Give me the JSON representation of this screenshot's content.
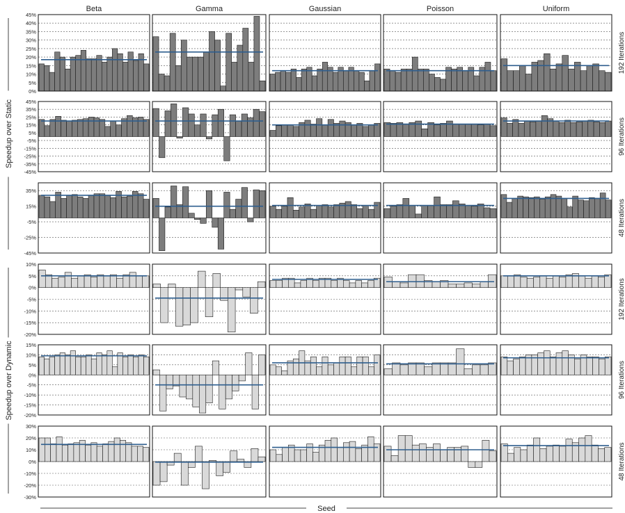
{
  "figure": {
    "col_titles": [
      "Beta",
      "Gamma",
      "Gaussian",
      "Poisson",
      "Uniform"
    ],
    "row_labels": [
      "192 Iterations",
      "96 Iterations",
      "48 Iterations",
      "192 Iterations",
      "96 Iterations",
      "48 Iterations"
    ],
    "group_labels": [
      "Speedup over Static",
      "Speedup over Dynamic"
    ],
    "x_axis_label": "Seed",
    "colors": {
      "static_bar": "#7d7d7d",
      "dynamic_bar": "#d9d9d9",
      "mean_line": "#2e5e8e"
    }
  },
  "chart_data": [
    {
      "type": "bar",
      "row": 0,
      "col": 0,
      "ylim": [
        0,
        45
      ],
      "yticks": [
        0,
        5,
        10,
        15,
        20,
        25,
        30,
        35,
        40,
        45
      ],
      "ytick_labels": [
        "0%",
        "5%",
        "10%",
        "15%",
        "20%",
        "25%",
        "30%",
        "35%",
        "40%",
        "45%"
      ],
      "mean": 18.5,
      "values": [
        16,
        15,
        11,
        23,
        20,
        13,
        20,
        21,
        24,
        19,
        19,
        21,
        17,
        20,
        25,
        22,
        17,
        23,
        18,
        22,
        16
      ]
    },
    {
      "type": "bar",
      "row": 0,
      "col": 1,
      "ylim": [
        0,
        45
      ],
      "mean": 23,
      "values": [
        32,
        10,
        9,
        34,
        15,
        30,
        20,
        20,
        20,
        23,
        35,
        30,
        3,
        34,
        17,
        27,
        37,
        17,
        44,
        6
      ]
    },
    {
      "type": "bar",
      "row": 0,
      "col": 2,
      "ylim": [
        0,
        45
      ],
      "mean": 12,
      "values": [
        10,
        11,
        12,
        11,
        13,
        8,
        13,
        14,
        9,
        13,
        17,
        14,
        11,
        14,
        12,
        14,
        12,
        11,
        6,
        12,
        16
      ]
    },
    {
      "type": "bar",
      "row": 0,
      "col": 3,
      "ylim": [
        0,
        45
      ],
      "mean": 12,
      "values": [
        13,
        12,
        11,
        13,
        13,
        20,
        13,
        13,
        10,
        8,
        7,
        14,
        13,
        14,
        12,
        14,
        9,
        14,
        17,
        12
      ]
    },
    {
      "type": "bar",
      "row": 0,
      "col": 4,
      "ylim": [
        0,
        45
      ],
      "mean": 15,
      "values": [
        19,
        12,
        12,
        15,
        10,
        17,
        18,
        22,
        13,
        16,
        21,
        13,
        17,
        12,
        15,
        16,
        12,
        11
      ]
    },
    {
      "type": "bar",
      "row": 1,
      "col": 0,
      "ylim": [
        -45,
        45
      ],
      "yticks": [
        -45,
        -35,
        -25,
        -15,
        -5,
        5,
        15,
        25,
        35,
        45
      ],
      "ytick_labels": [
        "-45%",
        "-35%",
        "-25%",
        "-15%",
        "-5%",
        "5%",
        "15%",
        "25%",
        "35%",
        "45%"
      ],
      "mean": 20,
      "values": [
        22,
        14,
        22,
        26,
        21,
        20,
        21,
        22,
        23,
        25,
        24,
        22,
        13,
        20,
        15,
        23,
        27,
        24,
        25,
        22
      ]
    },
    {
      "type": "bar",
      "row": 1,
      "col": 1,
      "ylim": [
        -45,
        45
      ],
      "mean": 20,
      "values": [
        36,
        -27,
        33,
        42,
        -2,
        37,
        29,
        15,
        29,
        -3,
        28,
        35,
        -31,
        28,
        20,
        29,
        24,
        35,
        32
      ]
    },
    {
      "type": "bar",
      "row": 1,
      "col": 2,
      "ylim": [
        -45,
        45
      ],
      "mean": 15,
      "values": [
        8,
        14,
        15,
        15,
        13,
        18,
        21,
        16,
        23,
        15,
        22,
        17,
        20,
        18,
        15,
        17,
        13,
        15,
        17
      ]
    },
    {
      "type": "bar",
      "row": 1,
      "col": 3,
      "ylim": [
        -45,
        45
      ],
      "mean": 16,
      "values": [
        18,
        17,
        18,
        16,
        18,
        20,
        10,
        18,
        15,
        17,
        20,
        16,
        16,
        16,
        16,
        15,
        16,
        14
      ]
    },
    {
      "type": "bar",
      "row": 1,
      "col": 4,
      "ylim": [
        -45,
        45
      ],
      "mean": 20,
      "values": [
        24,
        17,
        22,
        17,
        20,
        19,
        20,
        27,
        23,
        20,
        18,
        21,
        18,
        19,
        20,
        21,
        19,
        18,
        20
      ]
    },
    {
      "type": "bar",
      "row": 2,
      "col": 0,
      "ylim": [
        -45,
        45
      ],
      "yticks": [
        -45,
        -25,
        -5,
        15,
        35
      ],
      "ytick_labels": [
        "-45%",
        "-25%",
        "-5%",
        "15%",
        "35%"
      ],
      "mean": 29,
      "values": [
        29,
        27,
        21,
        33,
        25,
        29,
        30,
        27,
        25,
        29,
        31,
        31,
        29,
        26,
        34,
        27,
        28,
        34,
        31,
        24
      ]
    },
    {
      "type": "bar",
      "row": 2,
      "col": 1,
      "ylim": [
        -45,
        45
      ],
      "mean": 15,
      "values": [
        25,
        -42,
        14,
        41,
        17,
        40,
        6,
        -2,
        -7,
        35,
        -12,
        -40,
        33,
        11,
        24,
        39,
        -5,
        36,
        35
      ]
    },
    {
      "type": "bar",
      "row": 2,
      "col": 2,
      "ylim": [
        -45,
        45
      ],
      "mean": 16,
      "values": [
        15,
        11,
        15,
        26,
        10,
        14,
        18,
        11,
        16,
        17,
        14,
        17,
        19,
        21,
        17,
        12,
        16,
        11,
        20
      ]
    },
    {
      "type": "bar",
      "row": 2,
      "col": 3,
      "ylim": [
        -45,
        45
      ],
      "mean": 16,
      "values": [
        12,
        15,
        17,
        25,
        16,
        5,
        16,
        16,
        27,
        17,
        17,
        22,
        18,
        16,
        15,
        18,
        13,
        12
      ]
    },
    {
      "type": "bar",
      "row": 2,
      "col": 4,
      "ylim": [
        -45,
        45
      ],
      "mean": 25,
      "values": [
        30,
        20,
        25,
        28,
        27,
        26,
        27,
        24,
        27,
        30,
        28,
        25,
        14,
        28,
        23,
        22,
        26,
        25,
        32,
        23
      ]
    },
    {
      "type": "bar",
      "row": 3,
      "col": 0,
      "ylim": [
        -20,
        10
      ],
      "yticks": [
        -20,
        -15,
        -10,
        -5,
        0,
        5,
        10
      ],
      "ytick_labels": [
        "-20%",
        "-15%",
        "-10%",
        "-5%",
        "0%",
        "5%",
        "10%"
      ],
      "mean": 5,
      "values": [
        7.5,
        5.5,
        4,
        4.5,
        6.5,
        4,
        5,
        5.5,
        4.5,
        5.5,
        5,
        5.5,
        4,
        5.5,
        6.5,
        5,
        5
      ]
    },
    {
      "type": "bar",
      "row": 3,
      "col": 1,
      "ylim": [
        -20,
        10
      ],
      "mean": -4.5,
      "values": [
        1.5,
        -15,
        1.5,
        -16.5,
        -16,
        -15,
        7,
        -12.5,
        6,
        -5.5,
        -19,
        -1,
        -4,
        -11,
        2.5
      ]
    },
    {
      "type": "bar",
      "row": 3,
      "col": 2,
      "ylim": [
        -20,
        10
      ],
      "mean": 3.5,
      "values": [
        3,
        3,
        4,
        4,
        2,
        3,
        4,
        3,
        4,
        4,
        3,
        4,
        3,
        2,
        3,
        2,
        3,
        4
      ]
    },
    {
      "type": "bar",
      "row": 3,
      "col": 3,
      "ylim": [
        -20,
        10
      ],
      "mean": 2.5,
      "values": [
        4.5,
        2.5,
        2,
        5.5,
        5.5,
        3,
        2.5,
        3,
        1.5,
        1.5,
        2,
        1.5,
        2.5,
        5.5
      ]
    },
    {
      "type": "bar",
      "row": 3,
      "col": 4,
      "ylim": [
        -20,
        10
      ],
      "mean": 5,
      "values": [
        5,
        5,
        5.5,
        4.5,
        4,
        4.5,
        5,
        4,
        5,
        4.5,
        5.5,
        6,
        5,
        4,
        5,
        4.5,
        5.5
      ]
    },
    {
      "type": "bar",
      "row": 4,
      "col": 0,
      "ylim": [
        -20,
        15
      ],
      "yticks": [
        -20,
        -15,
        -10,
        -5,
        0,
        5,
        10,
        15
      ],
      "ytick_labels": [
        "-20%",
        "-15%",
        "-10%",
        "-5%",
        "0%",
        "5%",
        "10%",
        "15%"
      ],
      "mean": 9.5,
      "values": [
        9,
        8,
        9,
        10,
        11,
        10,
        12,
        9,
        9,
        10,
        8,
        11,
        10,
        12,
        4,
        11,
        9,
        10,
        9,
        10,
        9
      ]
    },
    {
      "type": "bar",
      "row": 4,
      "col": 1,
      "ylim": [
        -20,
        15
      ],
      "mean": -5,
      "values": [
        2.5,
        -18,
        -7,
        -5.5,
        -11,
        -12,
        -16,
        -19,
        -14,
        7,
        -17,
        -12,
        -8,
        -3,
        11,
        -17,
        10
      ]
    },
    {
      "type": "bar",
      "row": 4,
      "col": 2,
      "ylim": [
        -20,
        15
      ],
      "mean": 6,
      "values": [
        5,
        4,
        2,
        7,
        8,
        12,
        7,
        9,
        4,
        9,
        5,
        6,
        9,
        9,
        4,
        9,
        9,
        4,
        10
      ]
    },
    {
      "type": "bar",
      "row": 4,
      "col": 3,
      "ylim": [
        -20,
        15
      ],
      "mean": 5.5,
      "values": [
        3,
        6,
        5,
        6,
        6,
        4,
        6,
        6,
        6,
        13,
        3,
        5,
        5,
        6
      ]
    },
    {
      "type": "bar",
      "row": 4,
      "col": 4,
      "ylim": [
        -20,
        15
      ],
      "mean": 8.5,
      "values": [
        9,
        7,
        8,
        9,
        10,
        10,
        11,
        12,
        9,
        11,
        12,
        10,
        8,
        10,
        9,
        9,
        8,
        9
      ]
    },
    {
      "type": "bar",
      "row": 5,
      "col": 0,
      "ylim": [
        -30,
        30
      ],
      "yticks": [
        -30,
        -20,
        -10,
        0,
        10,
        20,
        30
      ],
      "ytick_labels": [
        "-30%",
        "-20%",
        "-10%",
        "0%",
        "10%",
        "20%",
        "30%"
      ],
      "mean": 14.5,
      "values": [
        20,
        20,
        15,
        21,
        14,
        15,
        16,
        18,
        14,
        16,
        13,
        15,
        17,
        20,
        18,
        16,
        13,
        13,
        12
      ]
    },
    {
      "type": "bar",
      "row": 5,
      "col": 1,
      "ylim": [
        -30,
        30
      ],
      "mean": -0.5,
      "values": [
        -20,
        -17,
        -3,
        7,
        -20,
        -5,
        13,
        -23,
        1,
        -12,
        -9,
        9,
        2,
        -5,
        11,
        4
      ]
    },
    {
      "type": "bar",
      "row": 5,
      "col": 2,
      "ylim": [
        -30,
        30
      ],
      "mean": 12,
      "values": [
        10,
        6,
        12,
        14,
        10,
        10,
        15,
        8,
        14,
        18,
        20,
        12,
        16,
        17,
        11,
        14,
        21,
        15
      ]
    },
    {
      "type": "bar",
      "row": 5,
      "col": 3,
      "ylim": [
        -30,
        30
      ],
      "mean": 10,
      "values": [
        13,
        5,
        22,
        22,
        14,
        15,
        12,
        15,
        10,
        12,
        12,
        13,
        -5,
        -5,
        18,
        9
      ]
    },
    {
      "type": "bar",
      "row": 5,
      "col": 4,
      "ylim": [
        -30,
        30
      ],
      "mean": 13.5,
      "values": [
        15,
        7,
        12,
        10,
        14,
        20,
        11,
        13,
        14,
        13,
        19,
        16,
        20,
        22,
        14,
        11,
        12
      ]
    }
  ]
}
